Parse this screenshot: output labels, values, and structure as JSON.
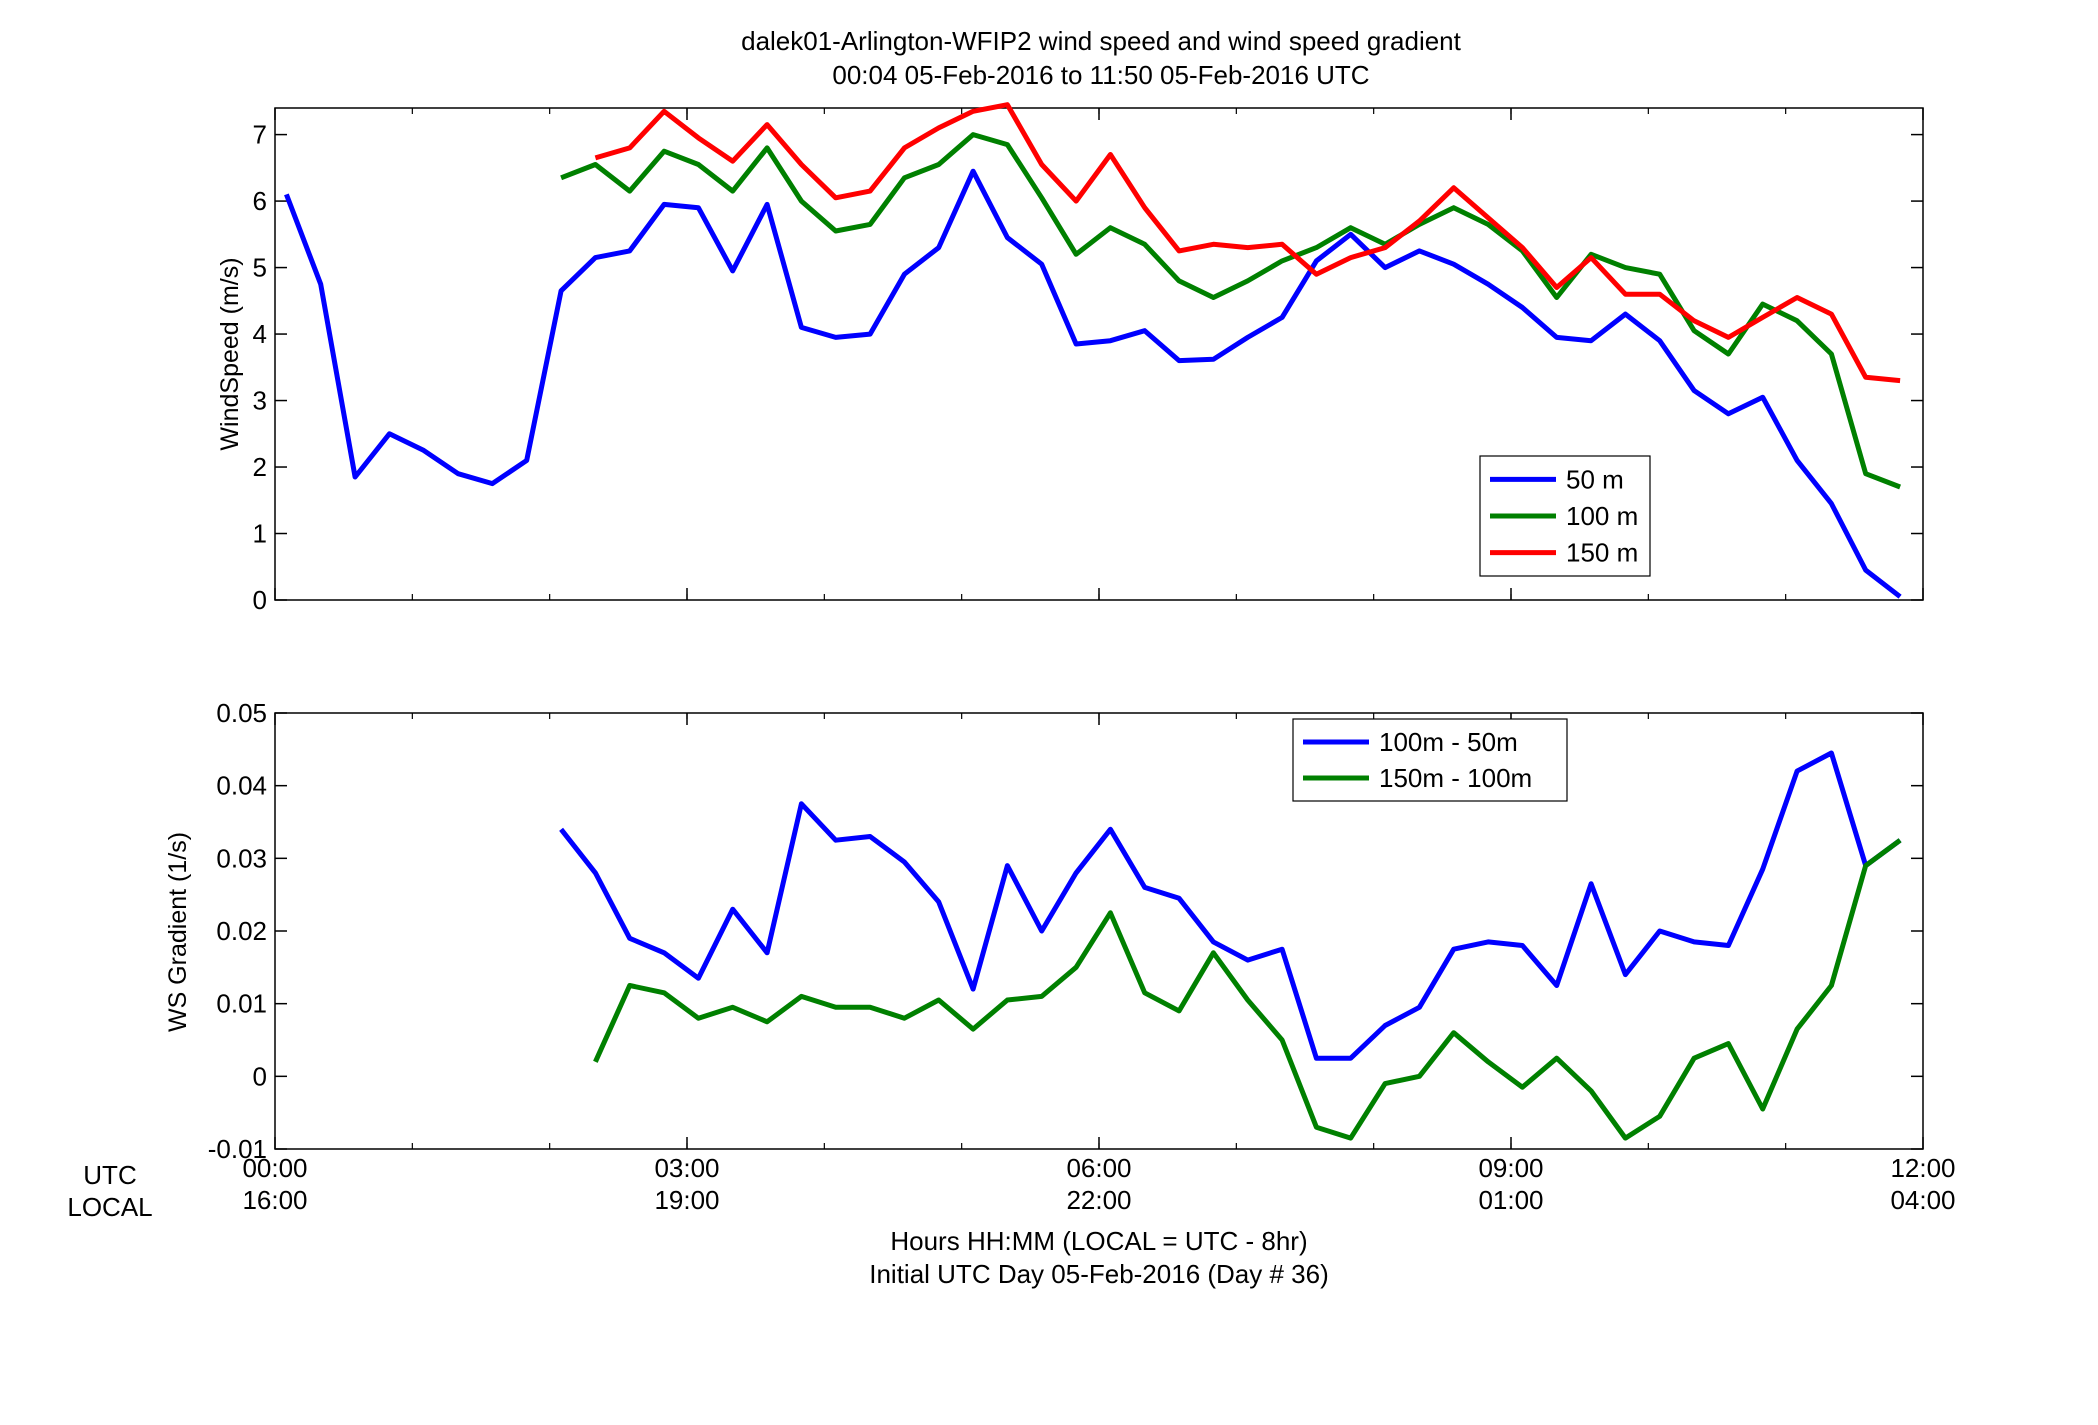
{
  "figure": {
    "title_line1": "dalek01-Arlington-WFIP2  wind speed and wind speed gradient",
    "title_line2": "00:04 05-Feb-2016 to 11:50 05-Feb-2016  UTC",
    "row_label_utc": "UTC",
    "row_label_local": "LOCAL",
    "xlabel_line1": "Hours HH:MM  (LOCAL = UTC - 8hr)",
    "xlabel_line2": "Initial UTC Day 05-Feb-2016 (Day # 36)",
    "x_ticks_utc": [
      "00:00",
      "03:00",
      "06:00",
      "09:00",
      "12:00"
    ],
    "x_ticks_local": [
      "16:00",
      "19:00",
      "22:00",
      "01:00",
      "04:00"
    ]
  },
  "chart_data": [
    {
      "type": "line",
      "title": "",
      "xlabel": "",
      "ylabel": "WindSpeed (m/s)",
      "x_unit": "hours UTC",
      "xlim": [
        0,
        12
      ],
      "ylim": [
        0,
        7.4
      ],
      "y_ticks": [
        0,
        1,
        2,
        3,
        4,
        5,
        6,
        7
      ],
      "grid": false,
      "legend_position": "lower-right",
      "series": [
        {
          "name": "50 m",
          "color": "#0000ff",
          "x": [
            0.083,
            0.333,
            0.583,
            0.833,
            1.083,
            1.333,
            1.583,
            1.833,
            2.083,
            2.333,
            2.583,
            2.833,
            3.083,
            3.333,
            3.583,
            3.833,
            4.083,
            4.333,
            4.583,
            4.833,
            5.083,
            5.333,
            5.583,
            5.833,
            6.083,
            6.333,
            6.583,
            6.833,
            7.083,
            7.333,
            7.583,
            7.833,
            8.083,
            8.333,
            8.583,
            8.833,
            9.083,
            9.333,
            9.583,
            9.833,
            10.083,
            10.333,
            10.583,
            10.833,
            11.083,
            11.333,
            11.583,
            11.833
          ],
          "values": [
            6.1,
            4.75,
            1.85,
            2.5,
            2.25,
            1.9,
            1.75,
            2.1,
            4.65,
            5.15,
            5.25,
            5.95,
            5.9,
            4.95,
            5.95,
            4.1,
            3.95,
            4.0,
            4.9,
            5.3,
            6.45,
            5.45,
            5.05,
            3.85,
            3.9,
            4.05,
            3.6,
            3.62,
            3.95,
            4.25,
            5.1,
            5.5,
            5.0,
            5.25,
            5.05,
            4.75,
            4.4,
            3.95,
            3.9,
            4.3,
            3.9,
            3.15,
            2.8,
            3.05,
            2.1,
            1.45,
            0.45,
            0.05
          ]
        },
        {
          "name": "100 m",
          "color": "#008000",
          "x": [
            2.083,
            2.333,
            2.583,
            2.833,
            3.083,
            3.333,
            3.583,
            3.833,
            4.083,
            4.333,
            4.583,
            4.833,
            5.083,
            5.333,
            5.583,
            5.833,
            6.083,
            6.333,
            6.583,
            6.833,
            7.083,
            7.333,
            7.583,
            7.833,
            8.083,
            8.333,
            8.583,
            8.833,
            9.083,
            9.333,
            9.583,
            9.833,
            10.083,
            10.333,
            10.583,
            10.833,
            11.083,
            11.333,
            11.583,
            11.833
          ],
          "values": [
            6.35,
            6.55,
            6.15,
            6.75,
            6.55,
            6.15,
            6.8,
            6.0,
            5.55,
            5.65,
            6.35,
            6.55,
            7.0,
            6.85,
            6.05,
            5.2,
            5.6,
            5.35,
            4.8,
            4.55,
            4.8,
            5.1,
            5.3,
            5.6,
            5.35,
            5.65,
            5.9,
            5.65,
            5.25,
            4.55,
            5.2,
            5.0,
            4.9,
            4.05,
            3.7,
            4.45,
            4.2,
            3.7,
            1.9,
            1.7
          ]
        },
        {
          "name": "150 m",
          "color": "#ff0000",
          "x": [
            2.333,
            2.583,
            2.833,
            3.083,
            3.333,
            3.583,
            3.833,
            4.083,
            4.333,
            4.583,
            4.833,
            5.083,
            5.333,
            5.583,
            5.833,
            6.083,
            6.333,
            6.583,
            6.833,
            7.083,
            7.333,
            7.583,
            7.833,
            8.083,
            8.333,
            8.583,
            8.833,
            9.083,
            9.333,
            9.583,
            9.833,
            10.083,
            10.333,
            10.583,
            10.833,
            11.083,
            11.333,
            11.583,
            11.833
          ],
          "values": [
            6.65,
            6.8,
            7.35,
            6.95,
            6.6,
            7.15,
            6.55,
            6.05,
            6.15,
            6.8,
            7.1,
            7.35,
            7.45,
            6.55,
            6.0,
            6.7,
            5.9,
            5.25,
            5.35,
            5.3,
            5.35,
            4.9,
            5.15,
            5.3,
            5.7,
            6.2,
            5.75,
            5.3,
            4.7,
            5.15,
            4.6,
            4.6,
            4.2,
            3.95,
            4.25,
            4.55,
            4.3,
            3.35,
            3.3
          ]
        }
      ]
    },
    {
      "type": "line",
      "title": "",
      "xlabel": "",
      "ylabel": "WS Gradient (1/s)",
      "x_unit": "hours UTC",
      "xlim": [
        0,
        12
      ],
      "ylim": [
        -0.01,
        0.05
      ],
      "y_ticks": [
        -0.01,
        0,
        0.01,
        0.02,
        0.03,
        0.04,
        0.05
      ],
      "y_tick_labels": [
        "-0.01",
        "0",
        "0.01",
        "0.02",
        "0.03",
        "0.04",
        "0.05"
      ],
      "grid": false,
      "legend_position": "top-right",
      "series": [
        {
          "name": "100m - 50m",
          "color": "#0000ff",
          "x": [
            2.083,
            2.333,
            2.583,
            2.833,
            3.083,
            3.333,
            3.583,
            3.833,
            4.083,
            4.333,
            4.583,
            4.833,
            5.083,
            5.333,
            5.583,
            5.833,
            6.083,
            6.333,
            6.583,
            6.833,
            7.083,
            7.333,
            7.583,
            7.833,
            8.083,
            8.333,
            8.583,
            8.833,
            9.083,
            9.333,
            9.583,
            9.833,
            10.083,
            10.333,
            10.583,
            10.833,
            11.083,
            11.333,
            11.583,
            11.833
          ],
          "values": [
            0.034,
            0.028,
            0.019,
            0.017,
            0.0135,
            0.023,
            0.017,
            0.0375,
            0.0325,
            0.033,
            0.0295,
            0.024,
            0.012,
            0.029,
            0.02,
            0.028,
            0.034,
            0.026,
            0.0245,
            0.0185,
            0.016,
            0.0175,
            0.0025,
            0.0025,
            0.007,
            0.0095,
            0.0175,
            0.0185,
            0.018,
            0.0125,
            0.0265,
            0.014,
            0.02,
            0.0185,
            0.018,
            0.0285,
            0.042,
            0.0445,
            0.029,
            0.0325
          ]
        },
        {
          "name": "150m - 100m",
          "color": "#008000",
          "x": [
            2.333,
            2.583,
            2.833,
            3.083,
            3.333,
            3.583,
            3.833,
            4.083,
            4.333,
            4.583,
            4.833,
            5.083,
            5.333,
            5.583,
            5.833,
            6.083,
            6.333,
            6.583,
            6.833,
            7.083,
            7.333,
            7.583,
            7.833,
            8.083,
            8.333,
            8.583,
            8.833,
            9.083,
            9.333,
            9.583,
            9.833,
            10.083,
            10.333,
            10.583,
            10.833,
            11.083,
            11.333,
            11.583,
            11.833
          ],
          "values": [
            0.002,
            0.0125,
            0.0115,
            0.008,
            0.0095,
            0.0075,
            0.011,
            0.0095,
            0.0095,
            0.008,
            0.0105,
            0.0065,
            0.0105,
            0.011,
            0.015,
            0.0225,
            0.0115,
            0.009,
            0.017,
            0.0105,
            0.005,
            -0.007,
            -0.0085,
            -0.001,
            0.0,
            0.006,
            0.002,
            -0.0015,
            0.0025,
            -0.002,
            -0.0085,
            -0.0055,
            0.0025,
            0.0045,
            -0.0045,
            0.0065,
            0.0125,
            0.029,
            0.0325
          ]
        }
      ]
    }
  ]
}
